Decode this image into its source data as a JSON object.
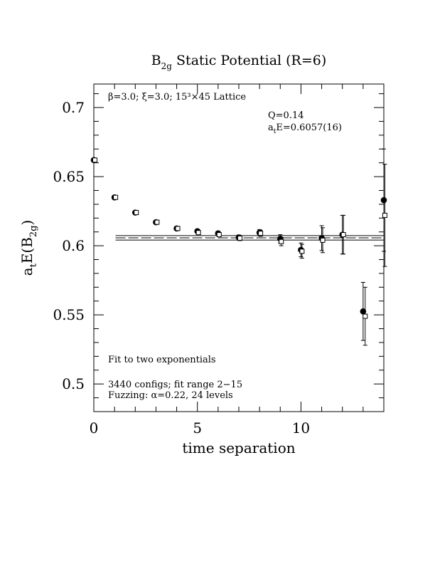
{
  "chart_data": {
    "type": "scatter",
    "title": "B",
    "title_sub": "2g",
    "title_rest": " Static Potential (R=6)",
    "xlabel": "time separation",
    "ylabel_main": "a",
    "ylabel_sub_t": "t",
    "ylabel_mid": "E(B",
    "ylabel_sub_2g": "2g",
    "ylabel_end": ")",
    "xlim": [
      0,
      14
    ],
    "ylim": [
      0.48,
      0.717
    ],
    "x_ticks": [
      0,
      5,
      10
    ],
    "x_tick_labels": [
      "0",
      "5",
      "10"
    ],
    "y_ticks": [
      0.5,
      0.55,
      0.6,
      0.65,
      0.7
    ],
    "y_tick_labels": [
      "0.5",
      "0.55",
      "0.6",
      "0.65",
      "0.7"
    ],
    "annotations": {
      "lattice_beta": "β=3.0; ξ=3.0; 15³×45 Lattice",
      "q_value": "Q=0.14",
      "energy_prefix": "a",
      "energy_sub": "t",
      "energy_value": "E=0.6057(16)",
      "fit_method": "Fit to two exponentials",
      "configs": "3440 configs; fit range 2−15",
      "fuzzing": "Fuzzing: α=0.22, 24 levels"
    },
    "fit": {
      "value": 0.6057,
      "error": 0.0016,
      "x_start": 1.05,
      "x_end": 14
    },
    "series": [
      {
        "marker": "filled-circle",
        "points": [
          {
            "x": 0,
            "y": 0.662,
            "err": 0.0007
          },
          {
            "x": 1,
            "y": 0.635,
            "err": 0.0007
          },
          {
            "x": 2,
            "y": 0.624,
            "err": 0.0008
          },
          {
            "x": 3,
            "y": 0.617,
            "err": 0.0009
          },
          {
            "x": 4,
            "y": 0.6125,
            "err": 0.001
          },
          {
            "x": 5,
            "y": 0.6105,
            "err": 0.0012
          },
          {
            "x": 6,
            "y": 0.609,
            "err": 0.0014
          },
          {
            "x": 7,
            "y": 0.606,
            "err": 0.0018
          },
          {
            "x": 8,
            "y": 0.6095,
            "err": 0.0022
          },
          {
            "x": 9,
            "y": 0.605,
            "err": 0.003
          },
          {
            "x": 10,
            "y": 0.597,
            "err": 0.005
          },
          {
            "x": 11,
            "y": 0.6055,
            "err": 0.009
          },
          {
            "x": 12,
            "y": 0.608,
            "err": 0.014
          },
          {
            "x": 13,
            "y": 0.5525,
            "err": 0.021
          },
          {
            "x": 14,
            "y": 0.633,
            "err": 0.037
          }
        ]
      },
      {
        "marker": "open-square",
        "points": [
          {
            "x": 0.05,
            "y": 0.662,
            "err": 0.0007
          },
          {
            "x": 1.05,
            "y": 0.635,
            "err": 0.0007
          },
          {
            "x": 2.05,
            "y": 0.624,
            "err": 0.0008
          },
          {
            "x": 3.05,
            "y": 0.617,
            "err": 0.0009
          },
          {
            "x": 4.05,
            "y": 0.6125,
            "err": 0.001
          },
          {
            "x": 5.05,
            "y": 0.6095,
            "err": 0.0012
          },
          {
            "x": 6.05,
            "y": 0.608,
            "err": 0.0014
          },
          {
            "x": 7.05,
            "y": 0.6055,
            "err": 0.0018
          },
          {
            "x": 8.05,
            "y": 0.609,
            "err": 0.0022
          },
          {
            "x": 9.05,
            "y": 0.603,
            "err": 0.003
          },
          {
            "x": 10.05,
            "y": 0.596,
            "err": 0.005
          },
          {
            "x": 11.05,
            "y": 0.604,
            "err": 0.009
          },
          {
            "x": 12.05,
            "y": 0.608,
            "err": 0.014
          },
          {
            "x": 13.1,
            "y": 0.549,
            "err": 0.021
          },
          {
            "x": 14.05,
            "y": 0.622,
            "err": 0.037
          }
        ]
      }
    ]
  }
}
